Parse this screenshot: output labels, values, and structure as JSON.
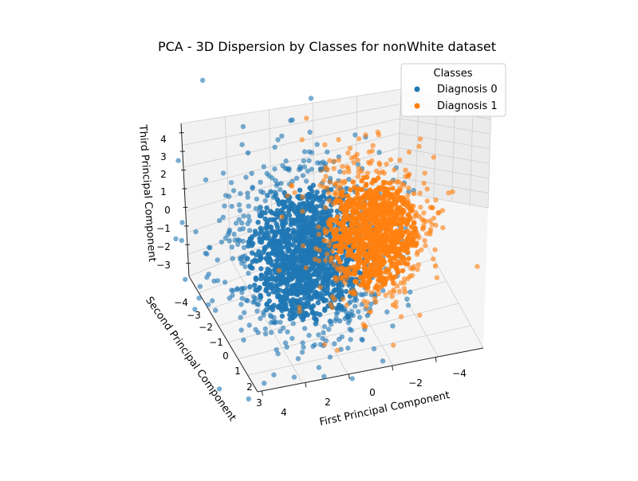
{
  "chart_data": {
    "type": "scatter",
    "subtype": "3d",
    "title": "PCA - 3D Dispersion by Classes for nonWhite dataset",
    "xlabel": "First Principal Component",
    "ylabel": "Second Principal Component",
    "zlabel": "Third Principal Component",
    "x_ticks": [
      "4",
      "2",
      "0",
      "−2",
      "−4"
    ],
    "y_ticks": [
      "−4",
      "−3",
      "−2",
      "−1",
      "0",
      "1",
      "2",
      "3"
    ],
    "z_ticks": [
      "4",
      "3",
      "2",
      "1",
      "0",
      "−1",
      "−2",
      "−3"
    ],
    "xlim": [
      -5,
      5
    ],
    "ylim": [
      -4.5,
      3.5
    ],
    "zlim": [
      -3.8,
      4.8
    ],
    "grid": true,
    "legend": {
      "title": "Classes",
      "placement": "top-right"
    },
    "series": [
      {
        "name": "Diagnosis 0",
        "color": "#1f77b4",
        "center": [
          1.8,
          -1.0,
          -0.9
        ],
        "spread": [
          1.0,
          1.4,
          1.1
        ]
      },
      {
        "name": "Diagnosis 1",
        "color": "#ff7f0e",
        "center": [
          -1.6,
          -1.2,
          -0.1
        ],
        "spread": [
          0.8,
          1.2,
          0.9
        ]
      }
    ]
  }
}
